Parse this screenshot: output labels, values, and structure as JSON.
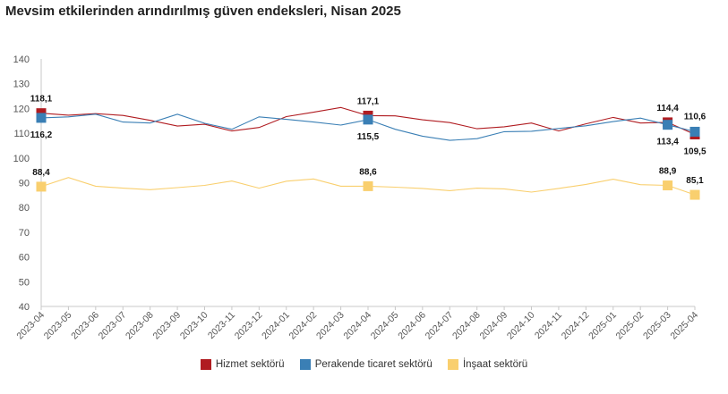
{
  "chart_data": {
    "type": "line",
    "title": "Mevsim etkilerinden arındırılmış güven endeksleri, Nisan 2025",
    "categories": [
      "2023-04",
      "2023-05",
      "2023-06",
      "2023-07",
      "2023-08",
      "2023-09",
      "2023-10",
      "2023-11",
      "2023-12",
      "2024-01",
      "2024-02",
      "2024-03",
      "2024-04",
      "2024-05",
      "2024-06",
      "2024-07",
      "2024-08",
      "2024-09",
      "2024-10",
      "2024-11",
      "2024-12",
      "2025-01",
      "2025-02",
      "2025-03",
      "2025-04"
    ],
    "ylim": [
      40,
      140
    ],
    "yticks": [
      40,
      50,
      60,
      70,
      80,
      90,
      100,
      110,
      120,
      130,
      140
    ],
    "grid": false,
    "legend_position": "bottom",
    "series": [
      {
        "name": "Hizmet sektörü",
        "color": "#b01c21",
        "values": [
          118.1,
          117.3,
          117.9,
          117.2,
          115.2,
          112.9,
          113.6,
          110.9,
          112.3,
          116.7,
          118.5,
          120.4,
          117.1,
          117.0,
          115.4,
          114.3,
          111.8,
          112.6,
          114.1,
          110.9,
          113.8,
          116.4,
          114.1,
          114.4,
          109.5
        ]
      },
      {
        "name": "Perakende ticaret sektörü",
        "color": "#3a7fb5",
        "values": [
          116.2,
          116.6,
          117.7,
          114.5,
          114.1,
          117.7,
          114.0,
          111.6,
          116.6,
          115.6,
          114.5,
          113.3,
          115.5,
          111.6,
          108.8,
          107.1,
          107.8,
          110.6,
          110.8,
          111.9,
          113.0,
          114.7,
          116.1,
          113.4,
          110.6
        ]
      },
      {
        "name": "İnşaat sektörü",
        "color": "#f9cf6e",
        "values": [
          88.4,
          92.1,
          88.6,
          87.8,
          87.2,
          88.0,
          88.9,
          90.7,
          87.8,
          90.6,
          91.5,
          88.6,
          88.6,
          88.2,
          87.7,
          86.8,
          87.8,
          87.5,
          86.2,
          87.7,
          89.3,
          91.4,
          89.2,
          88.9,
          85.1
        ]
      }
    ],
    "labels": [
      {
        "series": 0,
        "index": 0,
        "text": "118,1"
      },
      {
        "series": 1,
        "index": 0,
        "text": "116,2"
      },
      {
        "series": 2,
        "index": 0,
        "text": "88,4"
      },
      {
        "series": 0,
        "index": 12,
        "text": "117,1"
      },
      {
        "series": 1,
        "index": 12,
        "text": "115,5"
      },
      {
        "series": 2,
        "index": 12,
        "text": "88,6"
      },
      {
        "series": 0,
        "index": 23,
        "text": "114,4"
      },
      {
        "series": 1,
        "index": 23,
        "text": "113,4"
      },
      {
        "series": 2,
        "index": 23,
        "text": "88,9"
      },
      {
        "series": 1,
        "index": 24,
        "text": "110,6"
      },
      {
        "series": 0,
        "index": 24,
        "text": "109,5"
      },
      {
        "series": 2,
        "index": 24,
        "text": "85,1"
      }
    ]
  }
}
